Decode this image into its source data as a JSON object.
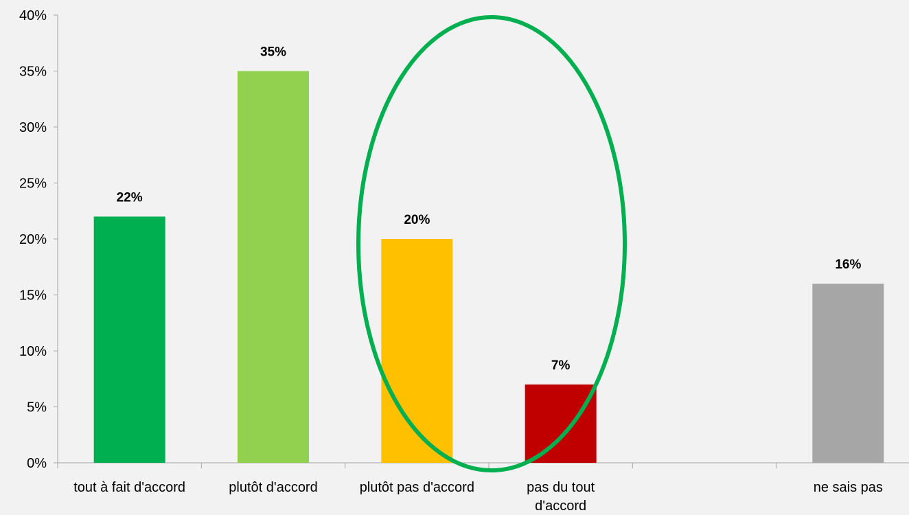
{
  "chart_data": {
    "type": "bar",
    "categories": [
      [
        "tout à fait d'accord"
      ],
      [
        "plutôt d'accord"
      ],
      [
        "plutôt pas d'accord"
      ],
      [
        "pas du tout",
        "d'accord"
      ],
      [
        ""
      ],
      [
        "ne sais pas"
      ]
    ],
    "values": [
      22,
      35,
      20,
      7,
      null,
      16
    ],
    "data_labels": [
      "22%",
      "35%",
      "20%",
      "7%",
      "",
      "16%"
    ],
    "bar_colors": [
      "#00b050",
      "#92d050",
      "#ffc000",
      "#c00000",
      "",
      "#a6a6a6"
    ],
    "ylim": [
      0,
      40
    ],
    "yticks": [
      {
        "value": 0,
        "label": "0%"
      },
      {
        "value": 5,
        "label": "5%"
      },
      {
        "value": 10,
        "label": "10%"
      },
      {
        "value": 15,
        "label": "15%"
      },
      {
        "value": 20,
        "label": "20%"
      },
      {
        "value": 25,
        "label": "25%"
      },
      {
        "value": 30,
        "label": "30%"
      },
      {
        "value": 35,
        "label": "35%"
      },
      {
        "value": 40,
        "label": "40%"
      }
    ],
    "title": "",
    "xlabel": "",
    "ylabel": "",
    "grid": false,
    "legend": "none",
    "annotation": {
      "shape": "ellipse",
      "color": "#00b050",
      "highlights": [
        "plutôt pas d'accord",
        "pas du tout d'accord"
      ]
    }
  }
}
